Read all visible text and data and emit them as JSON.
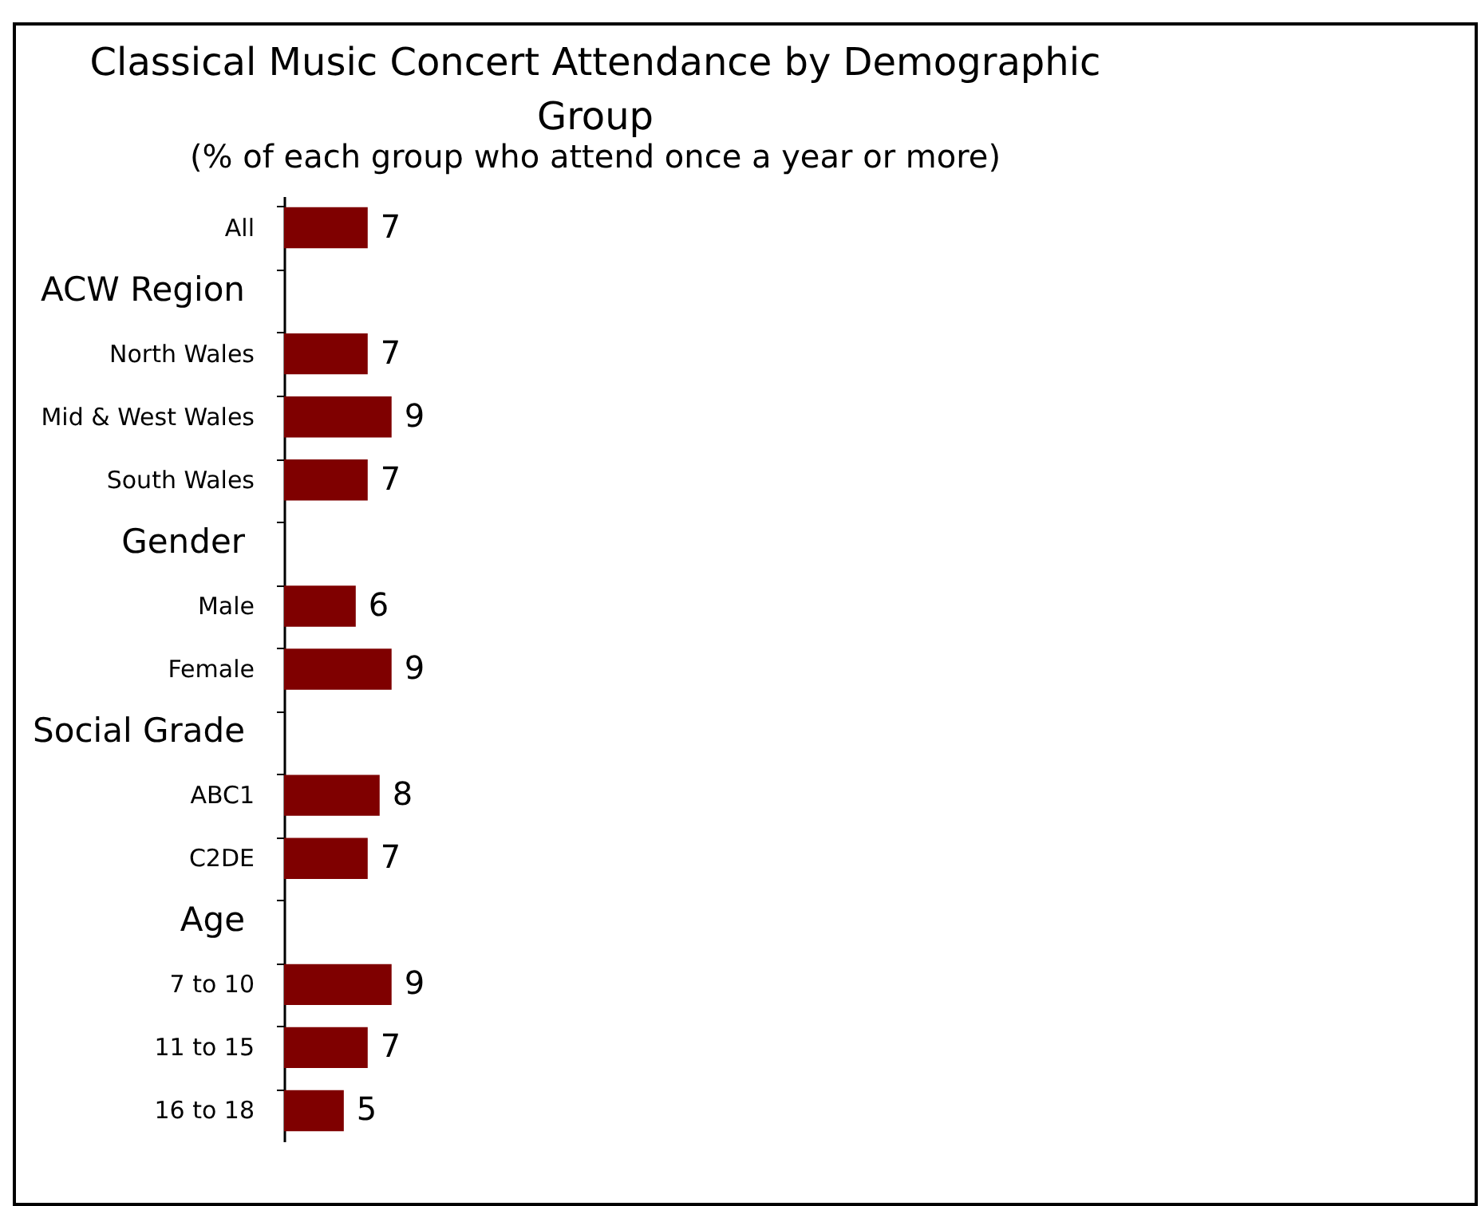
{
  "chart_data": {
    "type": "bar",
    "orientation": "horizontal",
    "title": "Classical Music Concert Attendance by Demographic Group",
    "subtitle": "(% of each group who attend once a year or more)",
    "categories": [
      "All",
      "ACW Region",
      "North Wales",
      "Mid & West Wales",
      "South Wales",
      "Gender",
      "Male",
      "Female",
      "Social Grade",
      "ABC1",
      "C2DE",
      "Age",
      "7 to 10",
      "11 to 15",
      "16 to 18"
    ],
    "values": [
      7,
      null,
      7,
      9,
      7,
      null,
      6,
      9,
      null,
      8,
      7,
      null,
      9,
      7,
      5
    ],
    "color": "#7f0000",
    "data_labels": true
  }
}
